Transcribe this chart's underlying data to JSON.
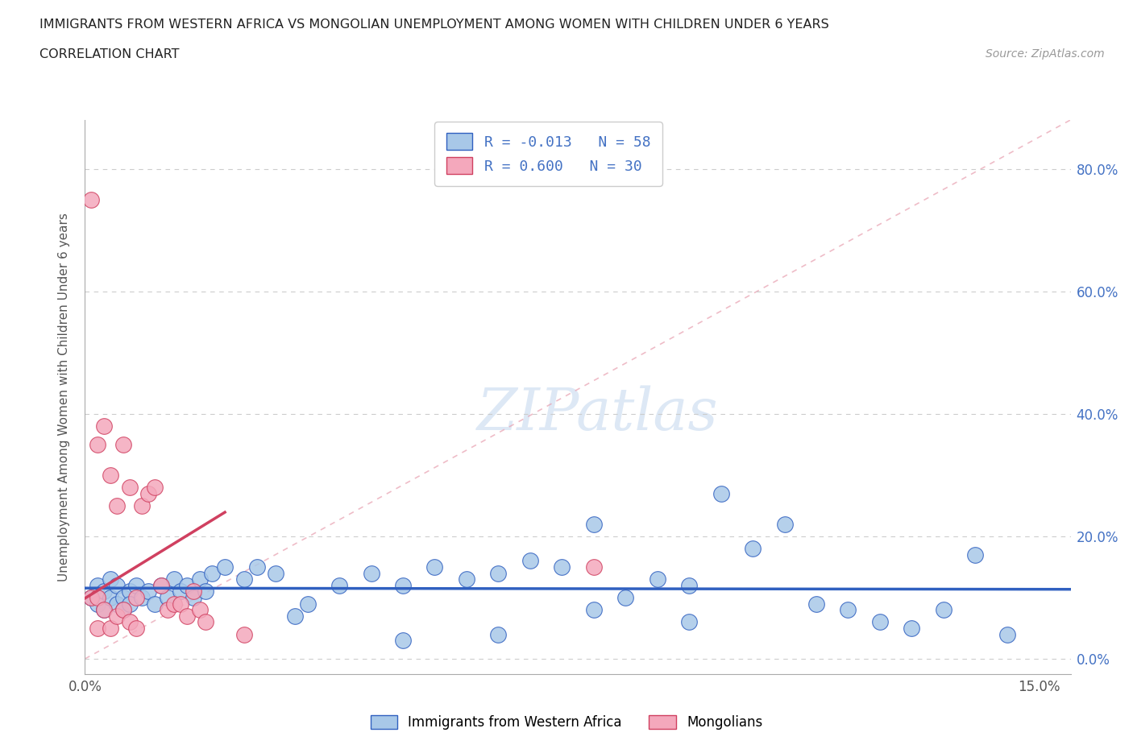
{
  "title_line1": "IMMIGRANTS FROM WESTERN AFRICA VS MONGOLIAN UNEMPLOYMENT AMONG WOMEN WITH CHILDREN UNDER 6 YEARS",
  "title_line2": "CORRELATION CHART",
  "source_text": "Source: ZipAtlas.com",
  "ylabel": "Unemployment Among Women with Children Under 6 years",
  "legend_r1": "R = -0.013   N = 58",
  "legend_r2": "R = 0.600   N = 30",
  "watermark": "ZIPatlas",
  "color_blue": "#a8c8e8",
  "color_pink": "#f4a8bc",
  "color_trendline_blue": "#3060c0",
  "color_trendline_pink": "#d04060",
  "color_refline": "#e090a0",
  "xlim": [
    0.0,
    0.155
  ],
  "ylim": [
    -0.025,
    0.88
  ],
  "ytick_vals": [
    0.0,
    0.2,
    0.4,
    0.6,
    0.8
  ],
  "ytick_labels": [
    "0.0%",
    "20.0%",
    "40.0%",
    "60.0%",
    "80.0%"
  ],
  "xtick_vals": [
    0.0,
    0.03,
    0.06,
    0.09,
    0.12,
    0.15
  ],
  "xtick_labels": [
    "0.0%",
    "",
    "",
    "",
    "",
    "15.0%"
  ],
  "blue_x": [
    0.001,
    0.002,
    0.002,
    0.003,
    0.003,
    0.004,
    0.004,
    0.005,
    0.005,
    0.006,
    0.006,
    0.007,
    0.007,
    0.008,
    0.009,
    0.01,
    0.011,
    0.012,
    0.013,
    0.014,
    0.015,
    0.016,
    0.017,
    0.018,
    0.019,
    0.02,
    0.022,
    0.025,
    0.027,
    0.03,
    0.033,
    0.035,
    0.04,
    0.045,
    0.05,
    0.055,
    0.06,
    0.065,
    0.07,
    0.075,
    0.08,
    0.085,
    0.09,
    0.095,
    0.1,
    0.105,
    0.11,
    0.115,
    0.12,
    0.125,
    0.13,
    0.135,
    0.14,
    0.145,
    0.05,
    0.065,
    0.08,
    0.095
  ],
  "blue_y": [
    0.1,
    0.09,
    0.12,
    0.08,
    0.11,
    0.1,
    0.13,
    0.09,
    0.12,
    0.1,
    0.08,
    0.11,
    0.09,
    0.12,
    0.1,
    0.11,
    0.09,
    0.12,
    0.1,
    0.13,
    0.11,
    0.12,
    0.1,
    0.13,
    0.11,
    0.14,
    0.15,
    0.13,
    0.15,
    0.14,
    0.07,
    0.09,
    0.12,
    0.14,
    0.12,
    0.15,
    0.13,
    0.14,
    0.16,
    0.15,
    0.22,
    0.1,
    0.13,
    0.12,
    0.27,
    0.18,
    0.22,
    0.09,
    0.08,
    0.06,
    0.05,
    0.08,
    0.17,
    0.04,
    0.03,
    0.04,
    0.08,
    0.06
  ],
  "pink_x": [
    0.001,
    0.001,
    0.002,
    0.002,
    0.002,
    0.003,
    0.003,
    0.004,
    0.004,
    0.005,
    0.005,
    0.006,
    0.006,
    0.007,
    0.007,
    0.008,
    0.008,
    0.009,
    0.01,
    0.011,
    0.012,
    0.013,
    0.014,
    0.015,
    0.016,
    0.017,
    0.018,
    0.019,
    0.025,
    0.08
  ],
  "pink_y": [
    0.75,
    0.1,
    0.35,
    0.1,
    0.05,
    0.38,
    0.08,
    0.3,
    0.05,
    0.25,
    0.07,
    0.35,
    0.08,
    0.28,
    0.06,
    0.1,
    0.05,
    0.25,
    0.27,
    0.28,
    0.12,
    0.08,
    0.09,
    0.09,
    0.07,
    0.11,
    0.08,
    0.06,
    0.04,
    0.15
  ]
}
